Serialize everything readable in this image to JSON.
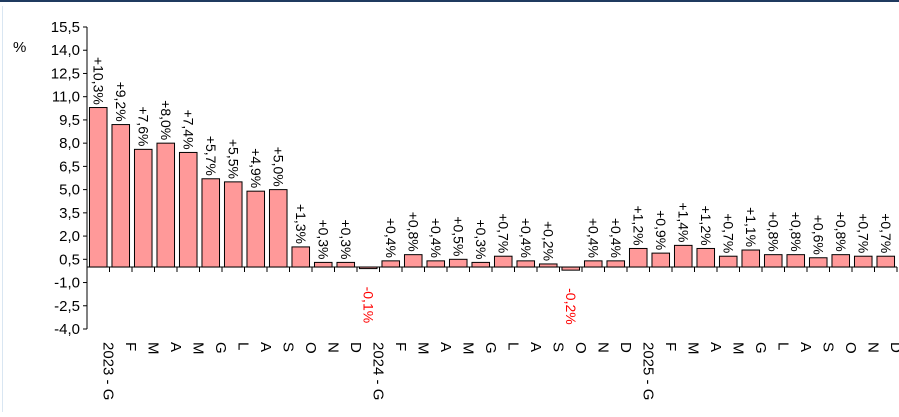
{
  "chart_data": {
    "type": "bar",
    "ylabel": "%",
    "ylim": [
      -4.0,
      15.5
    ],
    "yticks": [
      "15,5",
      "14,0",
      "12,5",
      "11,0",
      "9,5",
      "8,0",
      "6,5",
      "5,0",
      "3,5",
      "2,0",
      "0,5",
      "-1,0",
      "-2,5",
      "-4,0"
    ],
    "categories": [
      "2023 - G",
      "F",
      "M",
      "A",
      "M",
      "G",
      "L",
      "A",
      "S",
      "O",
      "N",
      "D",
      "2024 - G",
      "F",
      "M",
      "A",
      "M",
      "G",
      "L",
      "A",
      "S",
      "O",
      "N",
      "D",
      "2025 - G",
      "F",
      "M",
      "A",
      "M",
      "G",
      "L",
      "A",
      "S",
      "O",
      "N",
      "D"
    ],
    "values": [
      10.3,
      9.2,
      7.6,
      8.0,
      7.4,
      5.7,
      5.5,
      4.9,
      5.0,
      1.3,
      0.3,
      0.3,
      -0.1,
      0.4,
      0.8,
      0.4,
      0.5,
      0.3,
      0.7,
      0.4,
      0.2,
      -0.2,
      0.4,
      0.4,
      1.2,
      0.9,
      1.4,
      1.2,
      0.7,
      1.1,
      0.8,
      0.8,
      0.6,
      0.8,
      0.7,
      0.7
    ],
    "labels": [
      "+10,3%",
      "+9,2%",
      "+7,6%",
      "+8,0%",
      "+7,4%",
      "+5,7%",
      "+5,5%",
      "+4,9%",
      "+5,0%",
      "+1,3%",
      "+0,3%",
      "+0,3%",
      "-0,1%",
      "+0,4%",
      "+0,8%",
      "+0,4%",
      "+0,5%",
      "+0,3%",
      "+0,7%",
      "+0,4%",
      "+0,2%",
      "-0,2%",
      "+0,4%",
      "+0,4%",
      "+1,2%",
      "+0,9%",
      "+1,4%",
      "+1,2%",
      "+0,7%",
      "+1,1%",
      "+0,8%",
      "+0,8%",
      "+0,6%",
      "+0,8%",
      "+0,7%",
      "+0,7%"
    ],
    "colors": {
      "bar_fill": "#ff9999",
      "bar_stroke": "#000000",
      "label_positive": "#000000",
      "label_negative": "#ff0000"
    }
  }
}
